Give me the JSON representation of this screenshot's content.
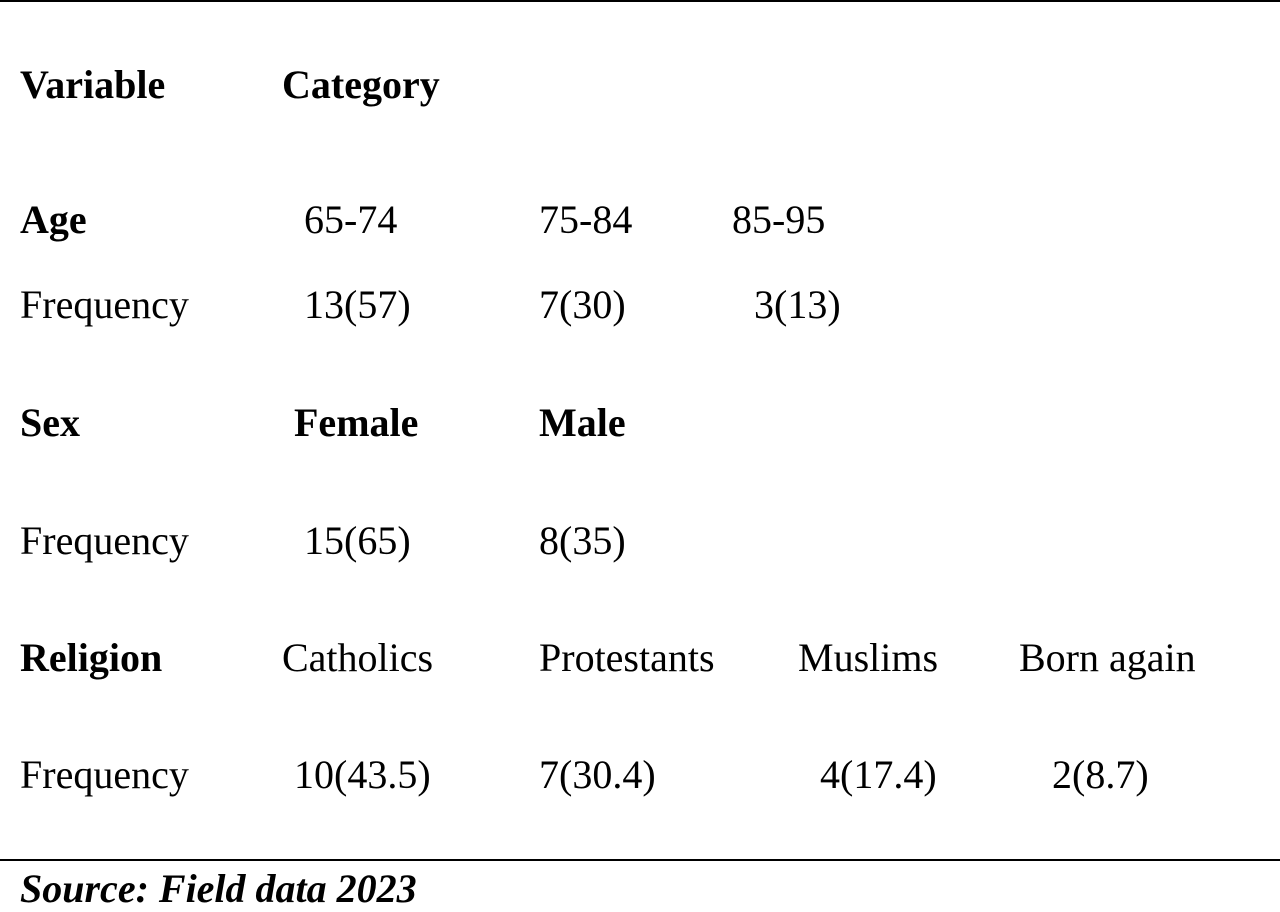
{
  "header": {
    "variable": "Variable",
    "category": "Category"
  },
  "age": {
    "label": "Age",
    "categories": [
      "65-74",
      "75-84",
      "85-95"
    ],
    "frequency_label": "Frequency",
    "frequencies": [
      "13(57)",
      "7(30)",
      "3(13)"
    ]
  },
  "sex": {
    "label": "Sex",
    "categories": [
      "Female",
      "Male"
    ],
    "frequency_label": "Frequency",
    "frequencies": [
      "15(65)",
      "8(35)"
    ]
  },
  "religion": {
    "label": "Religion",
    "categories": [
      "Catholics",
      "Protestants",
      "Muslims",
      "Born again"
    ],
    "frequency_label": "Frequency",
    "frequencies": [
      "10(43.5)",
      "7(30.4)",
      "4(17.4)",
      "2(8.7)"
    ]
  },
  "source": "Source: Field data 2023"
}
